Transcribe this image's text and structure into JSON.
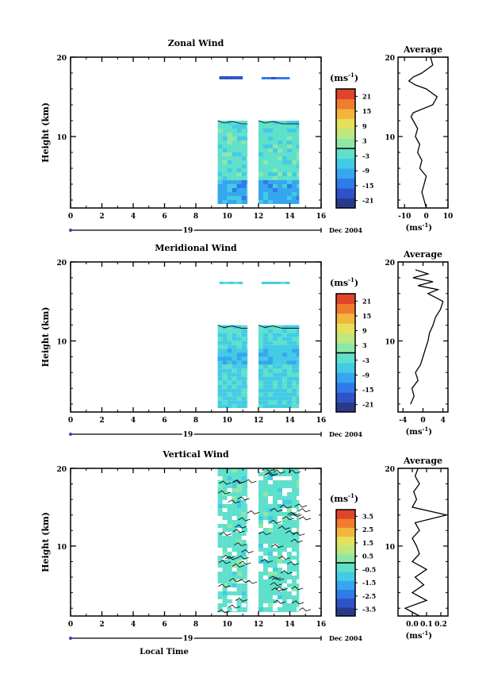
{
  "chart_data": [
    {
      "type": "heatmap",
      "title": "Zonal Wind",
      "ylabel": "Height (km)",
      "xlim": [
        0,
        16
      ],
      "ylim": [
        1,
        20
      ],
      "x_ticks": [
        "0",
        "2",
        "4",
        "6",
        "8",
        "10",
        "12",
        "14",
        "16"
      ],
      "y_ticks": [
        "10",
        "20"
      ],
      "date_label": "19",
      "date_suffix": "Dec 2004",
      "colorbar": {
        "unit": "(ms",
        "unit_sup": "-1",
        "unit_close": ")",
        "ticks": [
          "21",
          "15",
          "9",
          "3",
          "-3",
          "-9",
          "-15",
          "-21"
        ],
        "marker": "0"
      },
      "data_blocks": [
        {
          "x0": 9.4,
          "x1": 11.3,
          "y0": 1.5,
          "y1": 12.0,
          "level": 0.45
        },
        {
          "x0": 12.0,
          "x1": 14.6,
          "y0": 1.5,
          "y1": 12.0,
          "level": 0.45
        },
        {
          "x0": 9.4,
          "x1": 11.3,
          "y0": 1.5,
          "y1": 4.5,
          "level": 0.3
        },
        {
          "x0": 12.0,
          "x1": 14.6,
          "y0": 1.5,
          "y1": 4.5,
          "level": 0.3
        },
        {
          "x0": 9.5,
          "x1": 11.0,
          "y0": 17.2,
          "y1": 17.6,
          "level": 0.15
        },
        {
          "x0": 12.2,
          "x1": 14.0,
          "y0": 17.2,
          "y1": 17.5,
          "level": 0.15
        }
      ],
      "avg_profile": {
        "title": "Average",
        "xlabel": "(ms",
        "xlabel_sup": "-1",
        "xlabel_close": ")",
        "x_ticks": [
          "-10",
          "0",
          "10"
        ],
        "xlim": [
          -13,
          10
        ],
        "y_ticks": [
          "10",
          "20"
        ],
        "points": [
          [
            0,
            1
          ],
          [
            -1,
            2
          ],
          [
            -2,
            3
          ],
          [
            -1,
            4
          ],
          [
            0,
            5
          ],
          [
            -3,
            6
          ],
          [
            -2,
            7
          ],
          [
            -4,
            8
          ],
          [
            -3,
            9
          ],
          [
            -5,
            10
          ],
          [
            -4,
            11
          ],
          [
            -6,
            12
          ],
          [
            -7,
            12.5
          ],
          [
            -6,
            13
          ],
          [
            3,
            14
          ],
          [
            5,
            15
          ],
          [
            0,
            16
          ],
          [
            -5,
            16.5
          ],
          [
            -8,
            17
          ],
          [
            -6,
            17.5
          ],
          [
            -2,
            18
          ],
          [
            3,
            19
          ],
          [
            2,
            20
          ]
        ]
      }
    },
    {
      "type": "heatmap",
      "title": "Meridional Wind",
      "ylabel": "Height (km)",
      "xlim": [
        0,
        16
      ],
      "ylim": [
        1,
        20
      ],
      "x_ticks": [
        "0",
        "2",
        "4",
        "6",
        "8",
        "10",
        "12",
        "14",
        "16"
      ],
      "y_ticks": [
        "10",
        "20"
      ],
      "date_label": "19",
      "date_suffix": "Dec 2004",
      "colorbar": {
        "unit": "(ms",
        "unit_sup": "-1",
        "unit_close": ")",
        "ticks": [
          "21",
          "15",
          "9",
          "3",
          "-3",
          "-9",
          "-15",
          "-21"
        ],
        "marker": "0"
      },
      "data_blocks": [
        {
          "x0": 9.4,
          "x1": 11.3,
          "y0": 1.5,
          "y1": 12.0,
          "level": 0.4
        },
        {
          "x0": 12.0,
          "x1": 14.6,
          "y0": 1.5,
          "y1": 12.0,
          "level": 0.4
        },
        {
          "x0": 9.4,
          "x1": 11.3,
          "y0": 7.0,
          "y1": 9.0,
          "level": 0.35
        },
        {
          "x0": 12.0,
          "x1": 14.6,
          "y0": 7.0,
          "y1": 9.0,
          "level": 0.35
        },
        {
          "x0": 9.5,
          "x1": 11.0,
          "y0": 17.2,
          "y1": 17.5,
          "level": 0.42
        },
        {
          "x0": 12.2,
          "x1": 14.0,
          "y0": 17.2,
          "y1": 17.5,
          "level": 0.42
        }
      ],
      "avg_profile": {
        "title": "Average",
        "xlabel": "(ms",
        "xlabel_sup": "-1",
        "xlabel_close": ")",
        "x_ticks": [
          "-4",
          "0",
          "4"
        ],
        "xlim": [
          -5,
          5
        ],
        "y_ticks": [
          "10",
          "20"
        ],
        "points": [
          [
            -2.5,
            2
          ],
          [
            -1.8,
            3
          ],
          [
            -2.2,
            4
          ],
          [
            -1,
            5
          ],
          [
            -1.5,
            6
          ],
          [
            -0.5,
            7
          ],
          [
            0,
            8
          ],
          [
            0.5,
            9
          ],
          [
            1,
            10
          ],
          [
            1.3,
            11
          ],
          [
            2,
            12
          ],
          [
            2.5,
            13
          ],
          [
            3.5,
            14
          ],
          [
            4,
            15
          ],
          [
            1,
            16
          ],
          [
            3,
            16.5
          ],
          [
            -1,
            17
          ],
          [
            2,
            17.5
          ],
          [
            -2,
            18
          ],
          [
            1,
            18.5
          ],
          [
            -1.5,
            19
          ]
        ]
      }
    },
    {
      "type": "heatmap",
      "title": "Vertical Wind",
      "ylabel": "Height (km)",
      "xlabel": "Local Time",
      "xlim": [
        0,
        16
      ],
      "ylim": [
        1,
        20
      ],
      "x_ticks": [
        "0",
        "2",
        "4",
        "6",
        "8",
        "10",
        "12",
        "14",
        "16"
      ],
      "y_ticks": [
        "10",
        "20"
      ],
      "date_label": "19",
      "date_suffix": "Dec 2004",
      "colorbar": {
        "unit": "(ms",
        "unit_sup": "-1",
        "unit_close": ")",
        "ticks": [
          "3.5",
          "2.5",
          "1.5",
          "0.5",
          "-0.5",
          "-1.5",
          "-2.5",
          "-3.5"
        ],
        "marker": "0"
      },
      "data_blocks": [
        {
          "x0": 9.4,
          "x1": 11.3,
          "y0": 1.5,
          "y1": 20.0,
          "level": 0.47
        },
        {
          "x0": 12.0,
          "x1": 14.6,
          "y0": 1.5,
          "y1": 20.0,
          "level": 0.47
        }
      ],
      "avg_profile": {
        "title": "Average",
        "xlabel": "(ms",
        "xlabel_sup": "-1",
        "xlabel_close": ")",
        "x_ticks": [
          "0.0",
          "0.1",
          "0.2"
        ],
        "xlim": [
          -0.1,
          0.25
        ],
        "y_ticks": [
          "10",
          "20"
        ],
        "points": [
          [
            0.05,
            1
          ],
          [
            -0.05,
            2
          ],
          [
            0.1,
            3
          ],
          [
            0.0,
            4
          ],
          [
            0.08,
            5
          ],
          [
            0.02,
            6
          ],
          [
            0.1,
            7
          ],
          [
            0.0,
            8
          ],
          [
            0.05,
            9
          ],
          [
            0.03,
            10
          ],
          [
            0.0,
            11
          ],
          [
            0.05,
            12
          ],
          [
            0.02,
            13
          ],
          [
            0.24,
            14
          ],
          [
            0.0,
            15
          ],
          [
            0.03,
            16
          ],
          [
            0.01,
            17
          ],
          [
            0.05,
            18
          ],
          [
            0.02,
            19
          ],
          [
            0.04,
            20
          ]
        ]
      }
    }
  ]
}
